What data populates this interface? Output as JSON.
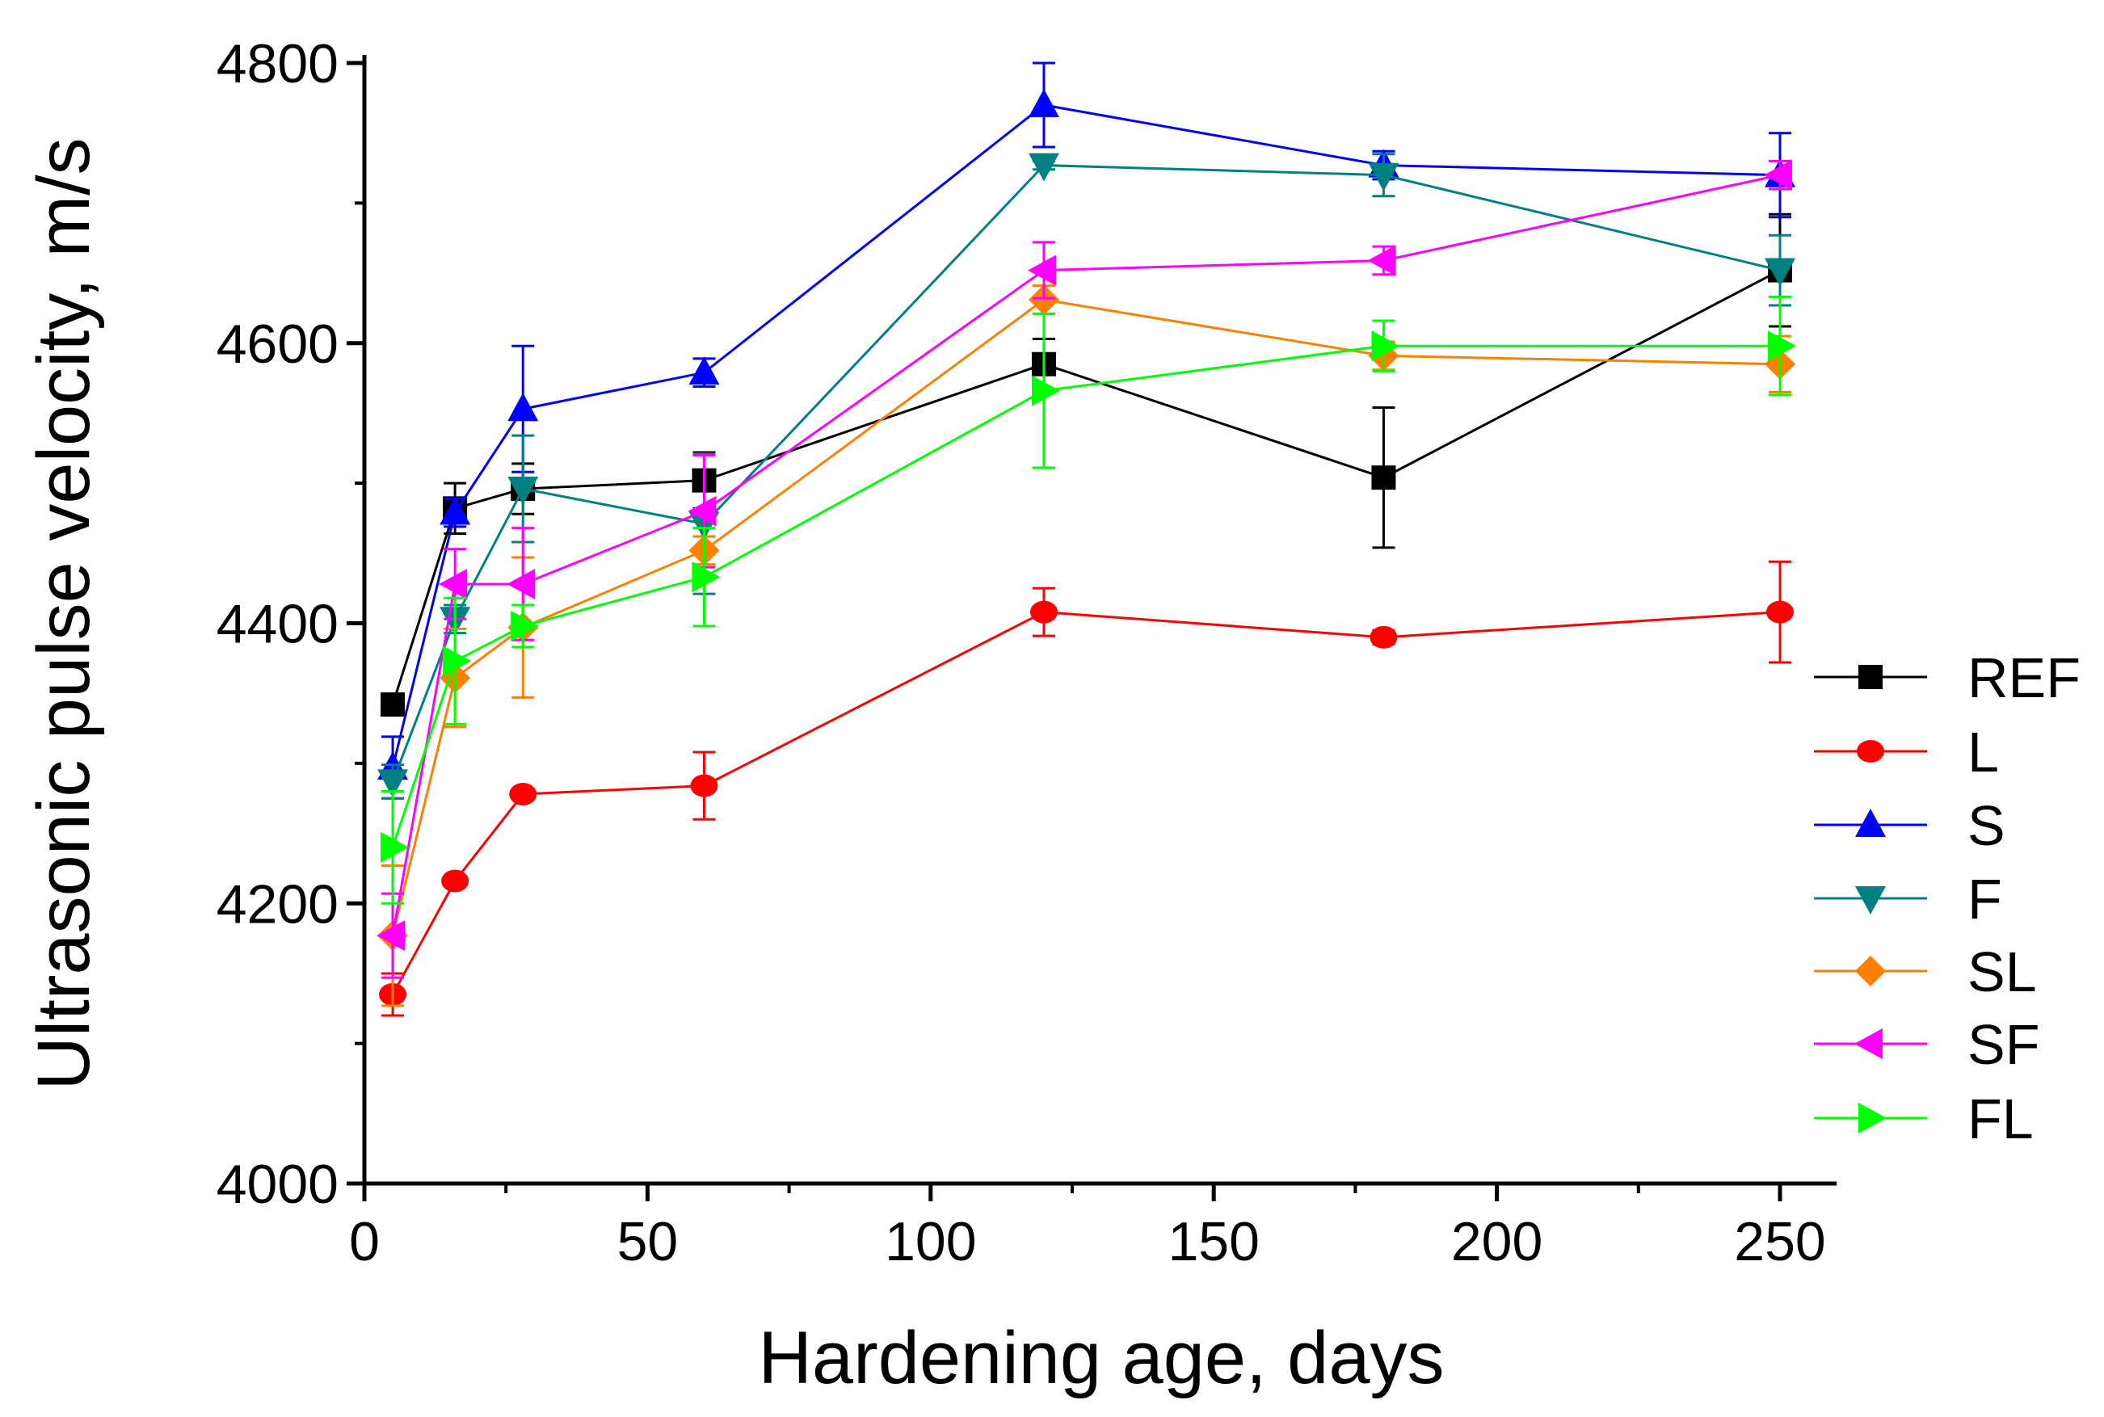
{
  "chart_data": {
    "type": "line",
    "title": "",
    "xlabel": "Hardening age, days",
    "ylabel": "Ultrasonic pulse velocity, m/s",
    "xlim": [
      0,
      260
    ],
    "ylim": [
      4000,
      4800
    ],
    "xticks": [
      0,
      50,
      100,
      150,
      200,
      250
    ],
    "yticks": [
      4000,
      4200,
      4400,
      4600,
      4800
    ],
    "xtick_labels": [
      "0",
      "50",
      "100",
      "150",
      "200",
      "250"
    ],
    "ytick_labels": [
      "4000",
      "4200",
      "4400",
      "4600",
      "4800"
    ],
    "grid": false,
    "legend_position": "right",
    "x": [
      5,
      16,
      28,
      60,
      120,
      180,
      250
    ],
    "series": [
      {
        "name": "REF",
        "color": "#000000",
        "marker": "square",
        "values": [
          4342,
          4482,
          4496,
          4502,
          4585,
          4504,
          4652
        ],
        "errors": [
          5,
          18,
          18,
          20,
          18,
          50,
          40
        ]
      },
      {
        "name": "L",
        "color": "#ff0000",
        "marker": "circle",
        "values": [
          4135,
          4216,
          4278,
          4284,
          4408,
          4390,
          4408
        ],
        "errors": [
          15,
          0,
          0,
          24,
          17,
          5,
          36
        ]
      },
      {
        "name": "S",
        "color": "#0000ff",
        "marker": "triangle-up",
        "values": [
          4297,
          4479,
          4553,
          4579,
          4770,
          4727,
          4720
        ],
        "errors": [
          22,
          10,
          45,
          10,
          30,
          10,
          30
        ]
      },
      {
        "name": "F",
        "color": "#008080",
        "marker": "triangle-down",
        "values": [
          4287,
          4403,
          4496,
          4471,
          4727,
          4720,
          4652
        ],
        "errors": [
          12,
          10,
          38,
          50,
          3,
          15,
          25
        ]
      },
      {
        "name": "SL",
        "color": "#ff8000",
        "marker": "diamond",
        "values": [
          4177,
          4361,
          4397,
          4452,
          4631,
          4591,
          4585
        ],
        "errors": [
          50,
          35,
          50,
          10,
          10,
          10,
          20
        ]
      },
      {
        "name": "SF",
        "color": "#ff00ff",
        "marker": "triangle-left",
        "values": [
          4177,
          4428,
          4428,
          4480,
          4652,
          4659,
          4720
        ],
        "errors": [
          30,
          25,
          40,
          40,
          20,
          10,
          10
        ]
      },
      {
        "name": "FL",
        "color": "#00ff00",
        "marker": "triangle-right",
        "values": [
          4240,
          4373,
          4398,
          4433,
          4566,
          4598,
          4598
        ],
        "errors": [
          40,
          45,
          15,
          35,
          55,
          18,
          35
        ]
      }
    ]
  }
}
